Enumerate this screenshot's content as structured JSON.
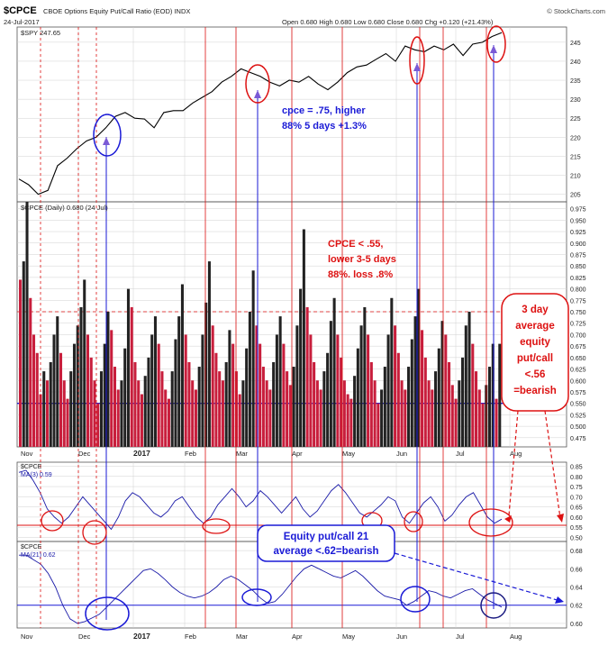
{
  "header": {
    "symbol": "$CPCE",
    "description": "CBOE Options Equity Put/Call Ratio (EOD) INDX",
    "date": "24-Jul-2017",
    "ohlc": "Open 0.680  High 0.680  Low 0.680  Close 0.680  Chg +0.120 (+21.43%)",
    "watermark": "© StockCharts.com"
  },
  "colors": {
    "price_line": "#000000",
    "bar_up": "#c81e3c",
    "bar_down": "#222222",
    "blue_annotation": "#1a1ad6",
    "red_annotation": "#dd1111",
    "ma_line": "#1a1aa8",
    "grid": "#d0d0d0"
  },
  "chart_data": [
    {
      "type": "line",
      "panel": "price",
      "legend": "$SPY 247.65",
      "y_ticks": [
        "205",
        "210",
        "215",
        "220",
        "225",
        "230",
        "235",
        "240",
        "245"
      ],
      "ylim": [
        203,
        249
      ],
      "x_labels": [
        "Nov",
        "Dec",
        "2017",
        "Feb",
        "Mar",
        "Apr",
        "May",
        "Jun",
        "Jul",
        "Aug"
      ],
      "series": [
        {
          "name": "$SPY",
          "values": [
            209.0,
            207.5,
            205.0,
            206.0,
            212.5,
            214.5,
            217.0,
            219.0,
            220.0,
            222.5,
            225.5,
            226.5,
            225.0,
            224.8,
            222.5,
            226.5,
            227.0,
            227.0,
            229.0,
            230.5,
            232.0,
            234.5,
            236.0,
            238.0,
            237.0,
            236.0,
            234.5,
            233.5,
            235.0,
            234.5,
            236.0,
            234.0,
            232.5,
            234.5,
            237.0,
            238.5,
            239.0,
            240.5,
            242.0,
            240.0,
            244.0,
            243.0,
            242.5,
            244.0,
            243.0,
            244.5,
            241.5,
            244.5,
            245.0,
            246.5,
            247.5
          ]
        }
      ]
    },
    {
      "type": "bar",
      "panel": "cpce",
      "legend": "$CPCE (Daily) 0.680 (24 Jul)",
      "y_ticks": [
        "0.475",
        "0.500",
        "0.525",
        "0.550",
        "0.575",
        "0.600",
        "0.625",
        "0.650",
        "0.675",
        "0.700",
        "0.725",
        "0.750",
        "0.775",
        "0.800",
        "0.825",
        "0.850",
        "0.875",
        "0.900",
        "0.925",
        "0.950",
        "0.975"
      ],
      "ylim": [
        0.455,
        0.99
      ],
      "reference_lines": [
        0.75,
        0.55
      ],
      "values": [
        0.82,
        0.86,
        0.99,
        0.78,
        0.7,
        0.66,
        0.57,
        0.62,
        0.6,
        0.64,
        0.7,
        0.74,
        0.66,
        0.6,
        0.56,
        0.62,
        0.68,
        0.72,
        0.76,
        0.82,
        0.7,
        0.65,
        0.6,
        0.55,
        0.62,
        0.68,
        0.75,
        0.71,
        0.63,
        0.58,
        0.6,
        0.67,
        0.8,
        0.76,
        0.64,
        0.6,
        0.57,
        0.61,
        0.65,
        0.7,
        0.74,
        0.68,
        0.62,
        0.58,
        0.56,
        0.62,
        0.69,
        0.74,
        0.81,
        0.7,
        0.64,
        0.6,
        0.58,
        0.63,
        0.7,
        0.77,
        0.86,
        0.72,
        0.66,
        0.62,
        0.6,
        0.64,
        0.71,
        0.68,
        0.62,
        0.57,
        0.6,
        0.67,
        0.75,
        0.84,
        0.72,
        0.68,
        0.63,
        0.6,
        0.58,
        0.64,
        0.7,
        0.74,
        0.68,
        0.62,
        0.59,
        0.63,
        0.72,
        0.8,
        0.93,
        0.76,
        0.7,
        0.64,
        0.6,
        0.58,
        0.62,
        0.66,
        0.73,
        0.78,
        0.7,
        0.65,
        0.6,
        0.57,
        0.56,
        0.61,
        0.67,
        0.72,
        0.76,
        0.7,
        0.64,
        0.6,
        0.55,
        0.58,
        0.63,
        0.7,
        0.78,
        0.72,
        0.66,
        0.6,
        0.58,
        0.63,
        0.69,
        0.74,
        0.8,
        0.71,
        0.65,
        0.6,
        0.58,
        0.62,
        0.67,
        0.73,
        0.7,
        0.64,
        0.59,
        0.56,
        0.6,
        0.65,
        0.72,
        0.75,
        0.68,
        0.62,
        0.58,
        0.55,
        0.59,
        0.63,
        0.68,
        0.56,
        0.68
      ]
    },
    {
      "type": "line",
      "panel": "ma3",
      "legend_symbol": "$CPCE",
      "legend": "MA(3) 0.59",
      "y_ticks": [
        "0.50",
        "0.55",
        "0.60",
        "0.65",
        "0.70",
        "0.75",
        "0.80",
        "0.85"
      ],
      "ylim": [
        0.48,
        0.87
      ],
      "reference_line": 0.56,
      "values": [
        0.82,
        0.83,
        0.78,
        0.72,
        0.64,
        0.6,
        0.57,
        0.6,
        0.65,
        0.7,
        0.66,
        0.62,
        0.58,
        0.54,
        0.6,
        0.68,
        0.72,
        0.7,
        0.66,
        0.62,
        0.6,
        0.63,
        0.68,
        0.7,
        0.65,
        0.6,
        0.57,
        0.6,
        0.66,
        0.7,
        0.74,
        0.7,
        0.65,
        0.68,
        0.73,
        0.7,
        0.66,
        0.62,
        0.66,
        0.7,
        0.64,
        0.6,
        0.63,
        0.68,
        0.73,
        0.76,
        0.72,
        0.67,
        0.62,
        0.6,
        0.63,
        0.66,
        0.7,
        0.68,
        0.6,
        0.57,
        0.62,
        0.67,
        0.7,
        0.65,
        0.58,
        0.61,
        0.66,
        0.7,
        0.72,
        0.66,
        0.6,
        0.57,
        0.59
      ]
    },
    {
      "type": "line",
      "panel": "ma21",
      "legend_symbol": "$CPCE",
      "legend": "MA(21) 0.62",
      "y_ticks": [
        "0.60",
        "0.62",
        "0.64",
        "0.66",
        "0.68"
      ],
      "ylim": [
        0.595,
        0.69
      ],
      "reference_line": 0.62,
      "values": [
        0.675,
        0.675,
        0.67,
        0.665,
        0.655,
        0.64,
        0.62,
        0.605,
        0.6,
        0.602,
        0.606,
        0.61,
        0.618,
        0.626,
        0.634,
        0.642,
        0.65,
        0.658,
        0.66,
        0.655,
        0.648,
        0.64,
        0.634,
        0.63,
        0.628,
        0.63,
        0.634,
        0.64,
        0.648,
        0.652,
        0.648,
        0.642,
        0.636,
        0.628,
        0.622,
        0.624,
        0.632,
        0.642,
        0.652,
        0.66,
        0.664,
        0.66,
        0.656,
        0.652,
        0.65,
        0.654,
        0.658,
        0.652,
        0.644,
        0.636,
        0.63,
        0.628,
        0.626,
        0.62,
        0.624,
        0.63,
        0.636,
        0.634,
        0.63,
        0.628,
        0.632,
        0.636,
        0.638,
        0.632,
        0.626,
        0.622,
        0.618
      ]
    }
  ],
  "annotations": {
    "cpce_075": [
      "cpce = .75, higher",
      "88% 5 days +1.3%"
    ],
    "cpce_055": [
      "CPCE < .55,",
      "lower 3-5 days",
      "88%. loss .8%"
    ],
    "three_day": [
      "3 day",
      "average",
      "equity",
      "put/call",
      "<.56",
      "=bearish"
    ],
    "equity21": [
      "Equity put/call 21",
      "average <.62=bearish"
    ]
  }
}
